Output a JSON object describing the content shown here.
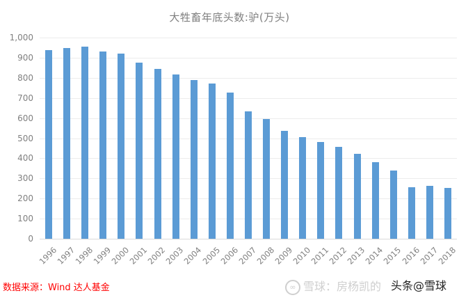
{
  "chart_data": {
    "type": "bar",
    "title": "大牲畜年底头数:驴(万头)",
    "xlabel": "",
    "ylabel": "",
    "ylim": [
      0,
      1000
    ],
    "yticks": [
      "0",
      "100",
      "200",
      "300",
      "400",
      "500",
      "600",
      "700",
      "800",
      "900",
      "1,000"
    ],
    "grid": true,
    "legend": "none",
    "bar_color": "#5b9bd5",
    "categories": [
      "1996",
      "1997",
      "1998",
      "1999",
      "2000",
      "2001",
      "2002",
      "2003",
      "2004",
      "2005",
      "2006",
      "2007",
      "2008",
      "2009",
      "2010",
      "2011",
      "2012",
      "2013",
      "2014",
      "2015",
      "2016",
      "2017",
      "2018"
    ],
    "values": [
      938,
      948,
      955,
      931,
      920,
      875,
      844,
      817,
      789,
      772,
      727,
      633,
      595,
      536,
      505,
      481,
      457,
      422,
      381,
      339,
      256,
      263,
      253
    ]
  },
  "footer": {
    "source": "数据来源：Wind  达人基金",
    "watermark": "雪球：房杨凯的",
    "overlay": "头条@雪球"
  },
  "colors": {
    "bar": "#5b9bd5",
    "source_text": "#ff0000",
    "axis_text": "#808080"
  }
}
